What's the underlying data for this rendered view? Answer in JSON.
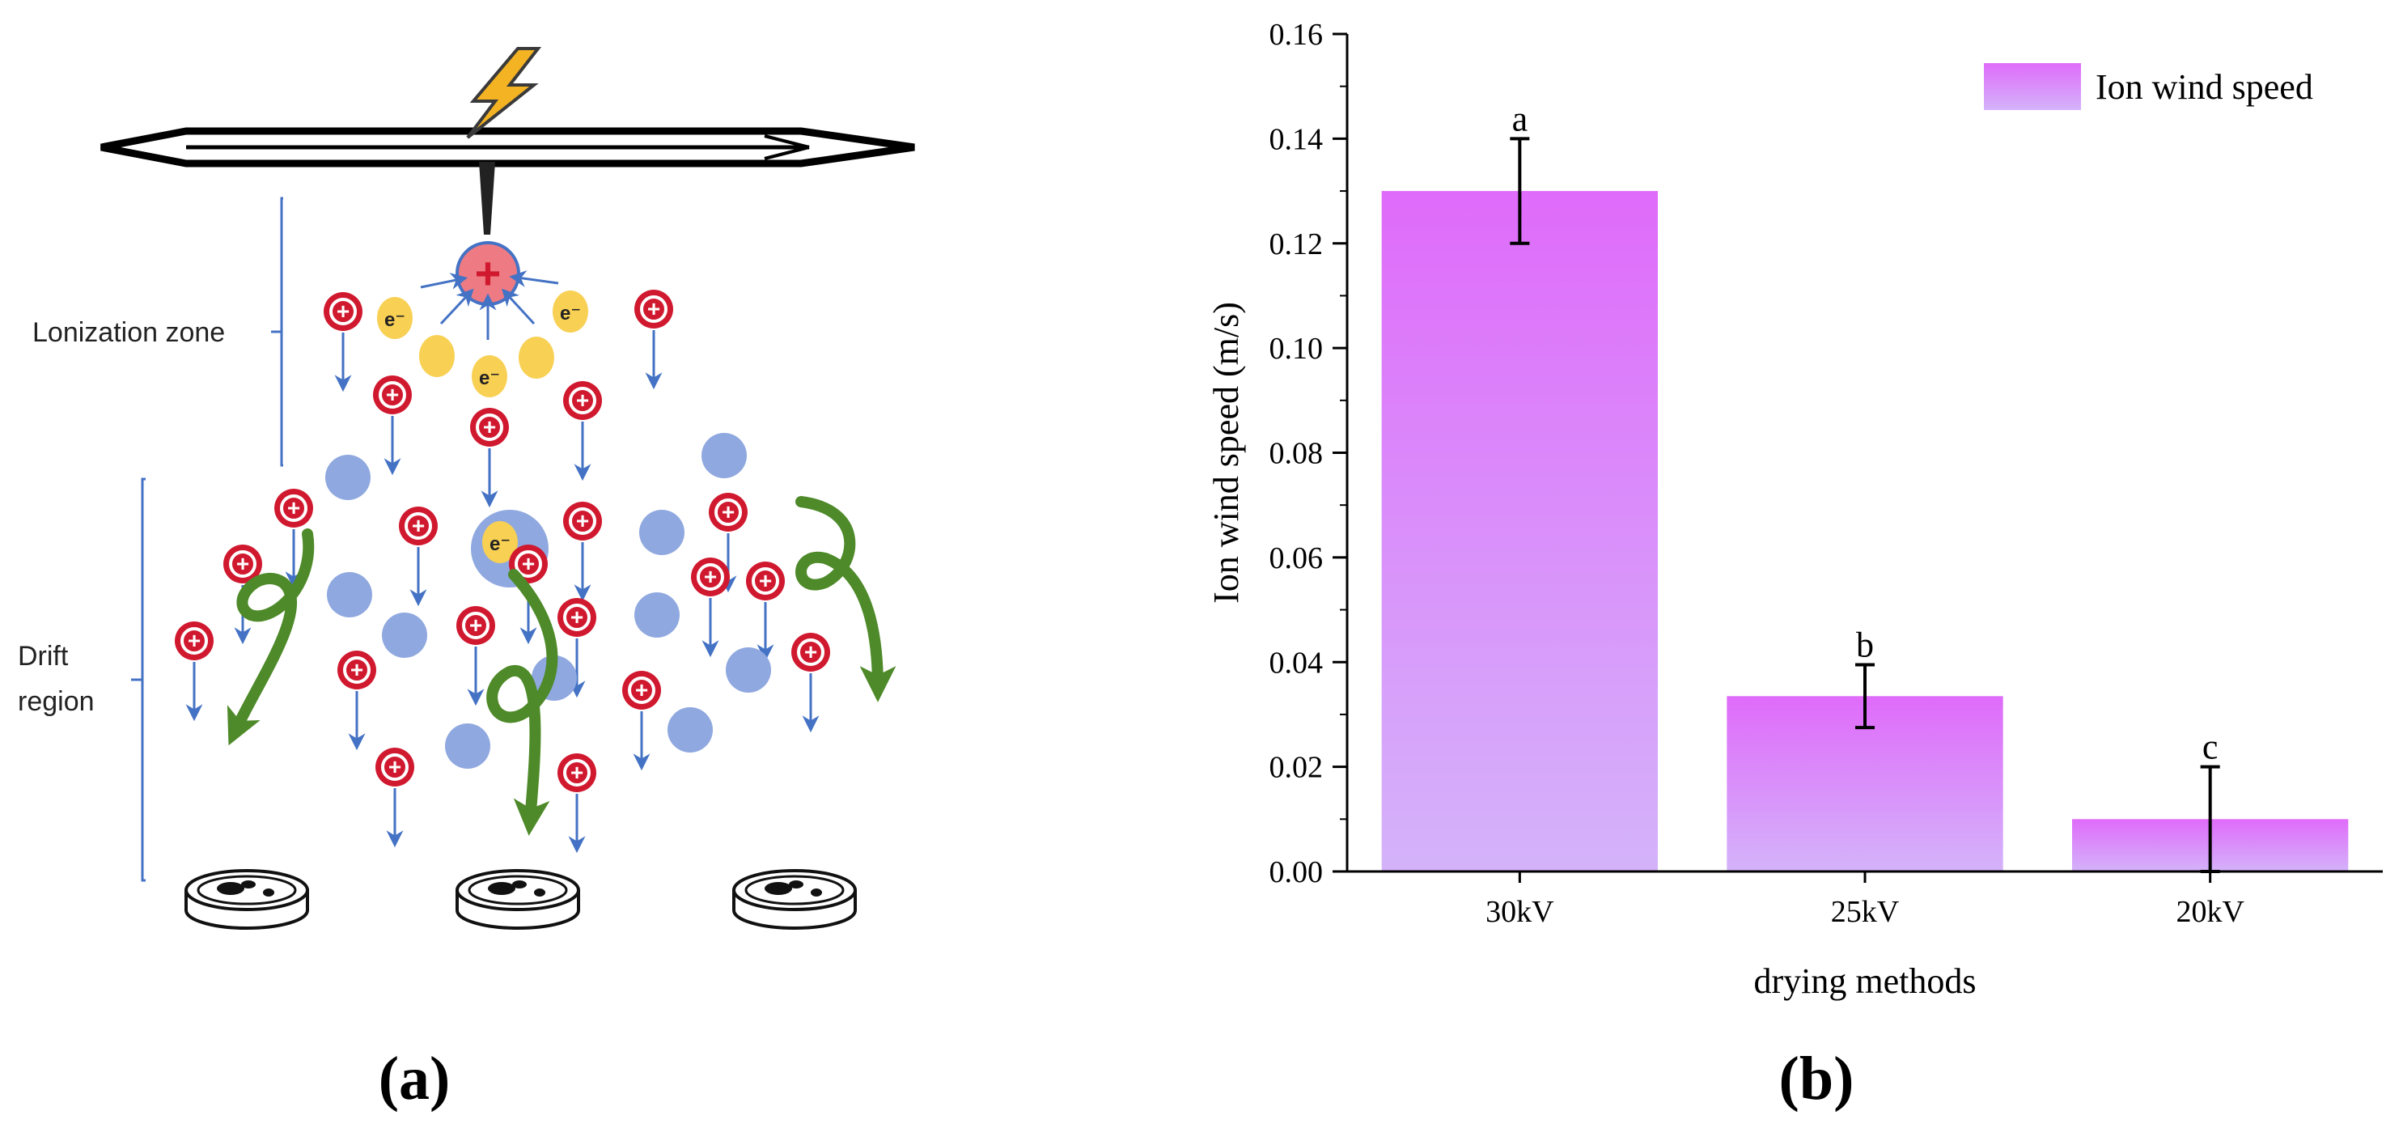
{
  "panel_a": {
    "label": "(a)",
    "zone_ionization": "Lonization zone",
    "zone_drift_line1": "Drift",
    "zone_drift_line2": "region",
    "electron_symbol": "e⁻",
    "plus_symbol": "+",
    "colors": {
      "positive_ion": "#d0192f",
      "electron": "#f8d053",
      "neutral": "#8fa8df",
      "arrow": "#4472c4",
      "trajectory": "#4e8a29",
      "bolt": "#f4b323"
    },
    "icons": [
      "lightning-bolt-icon",
      "electrode-needle-icon",
      "petri-dish-icon"
    ]
  },
  "panel_b": {
    "label": "(b)",
    "colors": {
      "bar_top": "#df6bfa",
      "bar_bottom": "#d4b3fa",
      "axis": "#000000"
    },
    "chart_data": {
      "type": "bar",
      "title": "",
      "xlabel": "drying methods",
      "ylabel": "Ion wind speed (m/s)",
      "categories": [
        "30kV",
        "25kV",
        "20kV"
      ],
      "series": [
        {
          "name": "Ion wind speed",
          "values": [
            0.13,
            0.0335,
            0.01
          ],
          "errors": [
            0.01,
            0.006,
            0.01
          ],
          "labels": [
            "a",
            "b",
            "c"
          ]
        }
      ],
      "ylim": [
        0,
        0.16
      ],
      "yticks": [
        "0.00",
        "0.02",
        "0.04",
        "0.06",
        "0.08",
        "0.10",
        "0.12",
        "0.14",
        "0.16"
      ],
      "grid": false,
      "legend": "top-right"
    }
  }
}
